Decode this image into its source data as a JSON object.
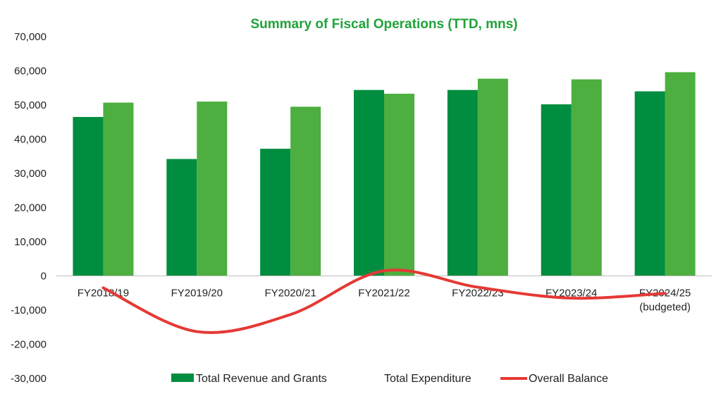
{
  "chart_data": {
    "type": "bar",
    "title": "Summary of Fiscal Operations (TTD, mns)",
    "categories": [
      [
        "FY2018/19"
      ],
      [
        "FY2019/20"
      ],
      [
        "FY2020/21"
      ],
      [
        "FY2021/22"
      ],
      [
        "FY2022/23"
      ],
      [
        "FY2023/24"
      ],
      [
        "FY2024/25",
        "(budgeted)"
      ]
    ],
    "series": [
      {
        "name": "Total Revenue and Grants",
        "kind": "bar",
        "color": "#008d3f",
        "values": [
          46500,
          34200,
          37200,
          54400,
          54400,
          50200,
          54000
        ]
      },
      {
        "name": "Total Expenditure",
        "kind": "bar",
        "color": "#4caf3f",
        "values": [
          50700,
          51000,
          49500,
          53300,
          57700,
          57500,
          59600
        ]
      },
      {
        "name": "Overall Balance",
        "kind": "line",
        "color": "#e53935",
        "values": [
          -3500,
          -16300,
          -11300,
          1500,
          -3300,
          -6500,
          -5100
        ]
      }
    ],
    "ylim": [
      -30000,
      70000
    ],
    "yticks": [
      "70,000",
      "60,000",
      "50,000",
      "40,000",
      "30,000",
      "20,000",
      "10,000",
      "0",
      "-10,000",
      "-20,000",
      "-30,000"
    ],
    "ytick_values": [
      70000,
      60000,
      50000,
      40000,
      30000,
      20000,
      10000,
      0,
      -10000,
      -20000,
      -30000
    ],
    "legend_position": "bottom",
    "grid": false,
    "title_color": "#1fa33a"
  }
}
